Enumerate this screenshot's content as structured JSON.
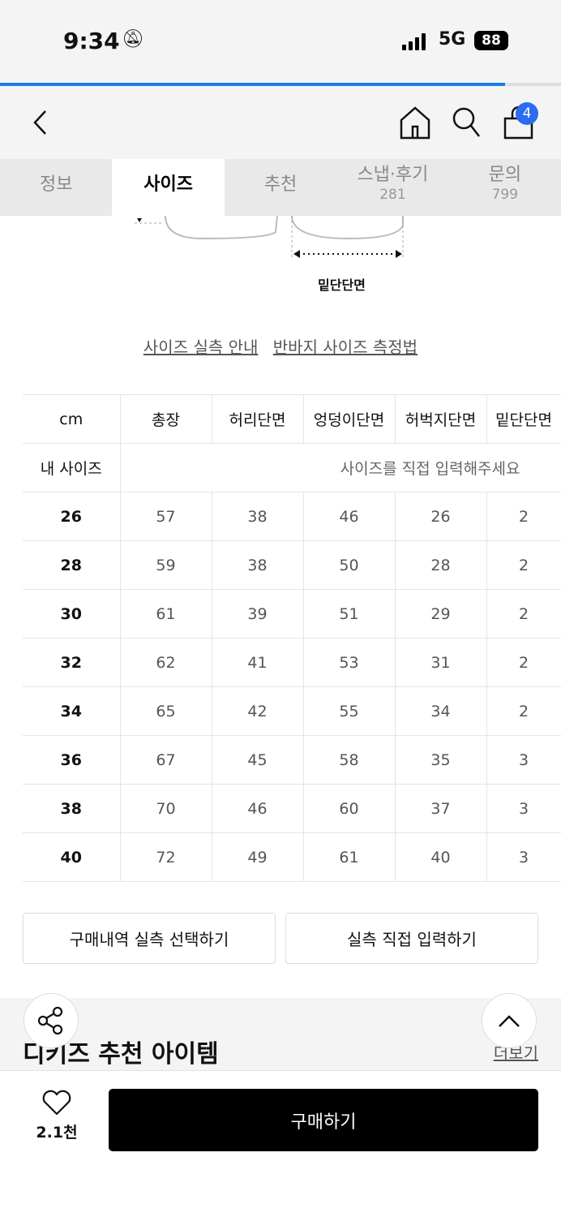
{
  "status_bar": {
    "time": "9:34",
    "network": "5G",
    "battery": "88"
  },
  "scroll_progress_percent": 90,
  "header": {
    "cart_count": "4"
  },
  "tabs": [
    {
      "label": "정보"
    },
    {
      "label": "사이즈",
      "active": true
    },
    {
      "label": "추천"
    },
    {
      "label": "스냅·후기",
      "count": "281"
    },
    {
      "label": "문의",
      "count": "799"
    }
  ],
  "diagram": {
    "label": "밑단단면"
  },
  "links": {
    "size_guide": "사이즈 실측 안내",
    "measure_method": "반바지 사이즈 측정법"
  },
  "size_table": {
    "headers": [
      "cm",
      "총장",
      "허리단면",
      "엉덩이단면",
      "허벅지단면",
      "밑단단면"
    ],
    "my_size_label": "내 사이즈",
    "my_size_placeholder": "사이즈를 직접 입력해주세요",
    "rows": [
      [
        "26",
        "57",
        "38",
        "46",
        "26",
        "2"
      ],
      [
        "28",
        "59",
        "38",
        "50",
        "28",
        "2"
      ],
      [
        "30",
        "61",
        "39",
        "51",
        "29",
        "2"
      ],
      [
        "32",
        "62",
        "41",
        "53",
        "31",
        "2"
      ],
      [
        "34",
        "65",
        "42",
        "55",
        "34",
        "2"
      ],
      [
        "36",
        "67",
        "45",
        "58",
        "35",
        "3"
      ],
      [
        "38",
        "70",
        "46",
        "60",
        "37",
        "3"
      ],
      [
        "40",
        "72",
        "49",
        "61",
        "40",
        "3"
      ]
    ]
  },
  "actions": {
    "purchase_history": "구매내역 실측 선택하기",
    "manual_input": "실측 직접 입력하기"
  },
  "recommend": {
    "title": "디키즈 추천 아이템",
    "more": "더보기"
  },
  "bottom": {
    "likes": "2.1천",
    "buy": "구매하기"
  },
  "colors": {
    "accent": "#1a7ee6",
    "badge": "#2b6cf0",
    "buy_button": "#000000"
  }
}
